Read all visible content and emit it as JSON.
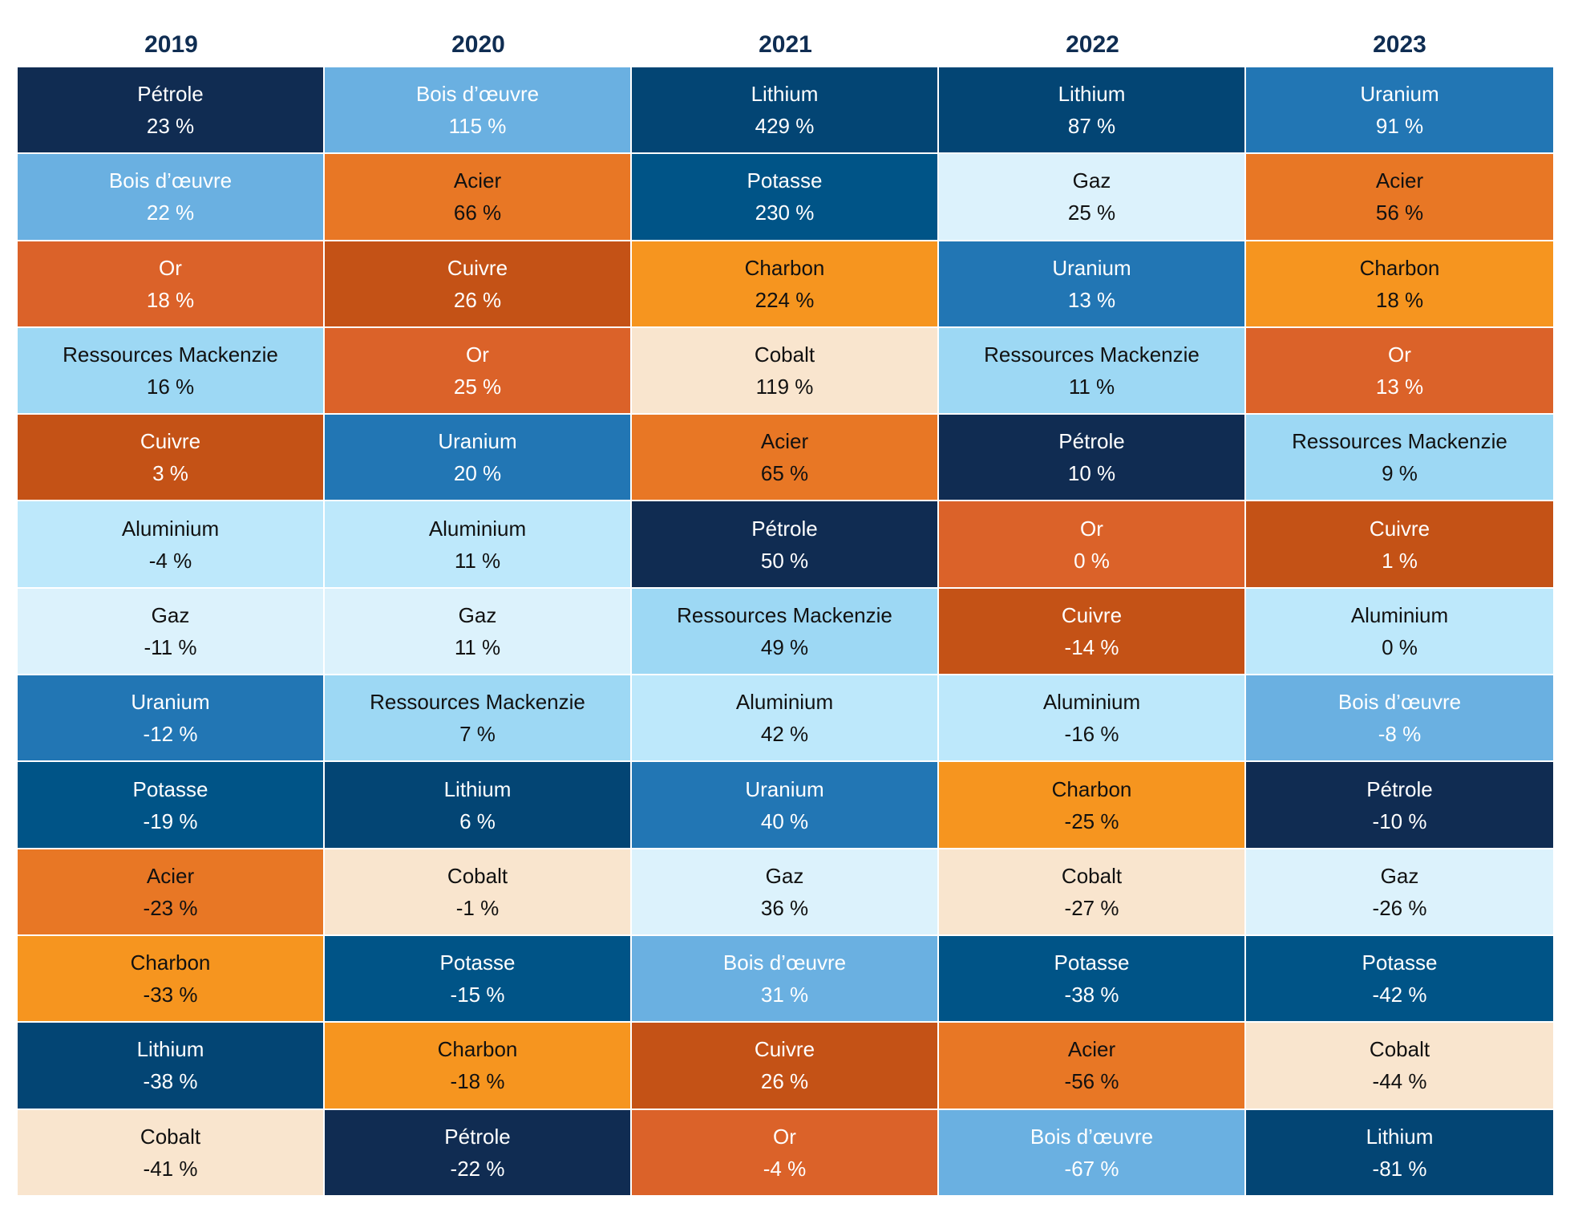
{
  "chart_data": {
    "type": "table",
    "title": "",
    "columns": [
      "2019",
      "2020",
      "2021",
      "2022",
      "2023"
    ],
    "data": {
      "2019": [
        {
          "name": "Pétrole",
          "value": "23 %"
        },
        {
          "name": "Bois d’œuvre",
          "value": "22 %"
        },
        {
          "name": "Or",
          "value": "18 %"
        },
        {
          "name": "Ressources Mackenzie",
          "value": "16 %"
        },
        {
          "name": "Cuivre",
          "value": "3 %"
        },
        {
          "name": "Aluminium",
          "value": "-4 %"
        },
        {
          "name": "Gaz",
          "value": "-11 %"
        },
        {
          "name": "Uranium",
          "value": "-12 %"
        },
        {
          "name": "Potasse",
          "value": "-19 %"
        },
        {
          "name": "Acier",
          "value": "-23 %"
        },
        {
          "name": "Charbon",
          "value": "-33 %"
        },
        {
          "name": "Lithium",
          "value": "-38 %"
        },
        {
          "name": "Cobalt",
          "value": "-41 %"
        }
      ],
      "2020": [
        {
          "name": "Bois d’œuvre",
          "value": "115 %"
        },
        {
          "name": "Acier",
          "value": "66 %"
        },
        {
          "name": "Cuivre",
          "value": "26 %"
        },
        {
          "name": "Or",
          "value": "25 %"
        },
        {
          "name": "Uranium",
          "value": "20 %"
        },
        {
          "name": "Aluminium",
          "value": "11 %"
        },
        {
          "name": "Gaz",
          "value": "11 %"
        },
        {
          "name": "Ressources Mackenzie",
          "value": "7 %"
        },
        {
          "name": "Lithium",
          "value": "6 %"
        },
        {
          "name": "Cobalt",
          "value": "-1 %"
        },
        {
          "name": "Potasse",
          "value": "-15 %"
        },
        {
          "name": "Charbon",
          "value": "-18 %"
        },
        {
          "name": "Pétrole",
          "value": "-22 %"
        }
      ],
      "2021": [
        {
          "name": "Lithium",
          "value": "429 %"
        },
        {
          "name": "Potasse",
          "value": "230 %"
        },
        {
          "name": "Charbon",
          "value": "224 %"
        },
        {
          "name": "Cobalt",
          "value": "119 %"
        },
        {
          "name": "Acier",
          "value": "65 %"
        },
        {
          "name": "Pétrole",
          "value": "50 %"
        },
        {
          "name": "Ressources Mackenzie",
          "value": "49 %"
        },
        {
          "name": "Aluminium",
          "value": "42 %"
        },
        {
          "name": "Uranium",
          "value": "40 %"
        },
        {
          "name": "Gaz",
          "value": "36 %"
        },
        {
          "name": "Bois d’œuvre",
          "value": "31 %"
        },
        {
          "name": "Cuivre",
          "value": "26 %"
        },
        {
          "name": "Or",
          "value": "-4 %"
        }
      ],
      "2022": [
        {
          "name": "Lithium",
          "value": "87 %"
        },
        {
          "name": "Gaz",
          "value": "25 %"
        },
        {
          "name": "Uranium",
          "value": "13 %"
        },
        {
          "name": "Ressources Mackenzie",
          "value": "11 %"
        },
        {
          "name": "Pétrole",
          "value": "10 %"
        },
        {
          "name": "Or",
          "value": "0 %"
        },
        {
          "name": "Cuivre",
          "value": "-14 %"
        },
        {
          "name": "Aluminium",
          "value": "-16 %"
        },
        {
          "name": "Charbon",
          "value": "-25 %"
        },
        {
          "name": "Cobalt",
          "value": "-27 %"
        },
        {
          "name": "Potasse",
          "value": "-38 %"
        },
        {
          "name": "Acier",
          "value": "-56 %"
        },
        {
          "name": "Bois d’œuvre",
          "value": "-67 %"
        }
      ],
      "2023": [
        {
          "name": "Uranium",
          "value": "91 %"
        },
        {
          "name": "Acier",
          "value": "56 %"
        },
        {
          "name": "Charbon",
          "value": "18 %"
        },
        {
          "name": "Or",
          "value": "13 %"
        },
        {
          "name": "Ressources Mackenzie",
          "value": "9 %"
        },
        {
          "name": "Cuivre",
          "value": "1 %"
        },
        {
          "name": "Aluminium",
          "value": "0 %"
        },
        {
          "name": "Bois d’œuvre",
          "value": "-8 %"
        },
        {
          "name": "Pétrole",
          "value": "-10 %"
        },
        {
          "name": "Gaz",
          "value": "-26 %"
        },
        {
          "name": "Potasse",
          "value": "-42 %"
        },
        {
          "name": "Cobalt",
          "value": "-44 %"
        },
        {
          "name": "Lithium",
          "value": "-81 %"
        }
      ]
    },
    "colors": {
      "Pétrole": {
        "bg": "#102c52",
        "fg": "#ffffff"
      },
      "Bois d’œuvre": {
        "bg": "#6ab0e1",
        "fg": "#ffffff"
      },
      "Or": {
        "bg": "#db6229",
        "fg": "#ffffff"
      },
      "Ressources Mackenzie": {
        "bg": "#9dd8f4",
        "fg": "#111111"
      },
      "Cuivre": {
        "bg": "#c45216",
        "fg": "#ffffff"
      },
      "Aluminium": {
        "bg": "#bde8fb",
        "fg": "#111111"
      },
      "Gaz": {
        "bg": "#dcf2fc",
        "fg": "#111111"
      },
      "Uranium": {
        "bg": "#2276b4",
        "fg": "#ffffff"
      },
      "Potasse": {
        "bg": "#005487",
        "fg": "#ffffff"
      },
      "Acier": {
        "bg": "#e87725",
        "fg": "#111111"
      },
      "Charbon": {
        "bg": "#f6951f",
        "fg": "#111111"
      },
      "Lithium": {
        "bg": "#034574",
        "fg": "#ffffff"
      },
      "Cobalt": {
        "bg": "#f9e5ce",
        "fg": "#111111"
      }
    },
    "header_color": "#0f2d52"
  }
}
